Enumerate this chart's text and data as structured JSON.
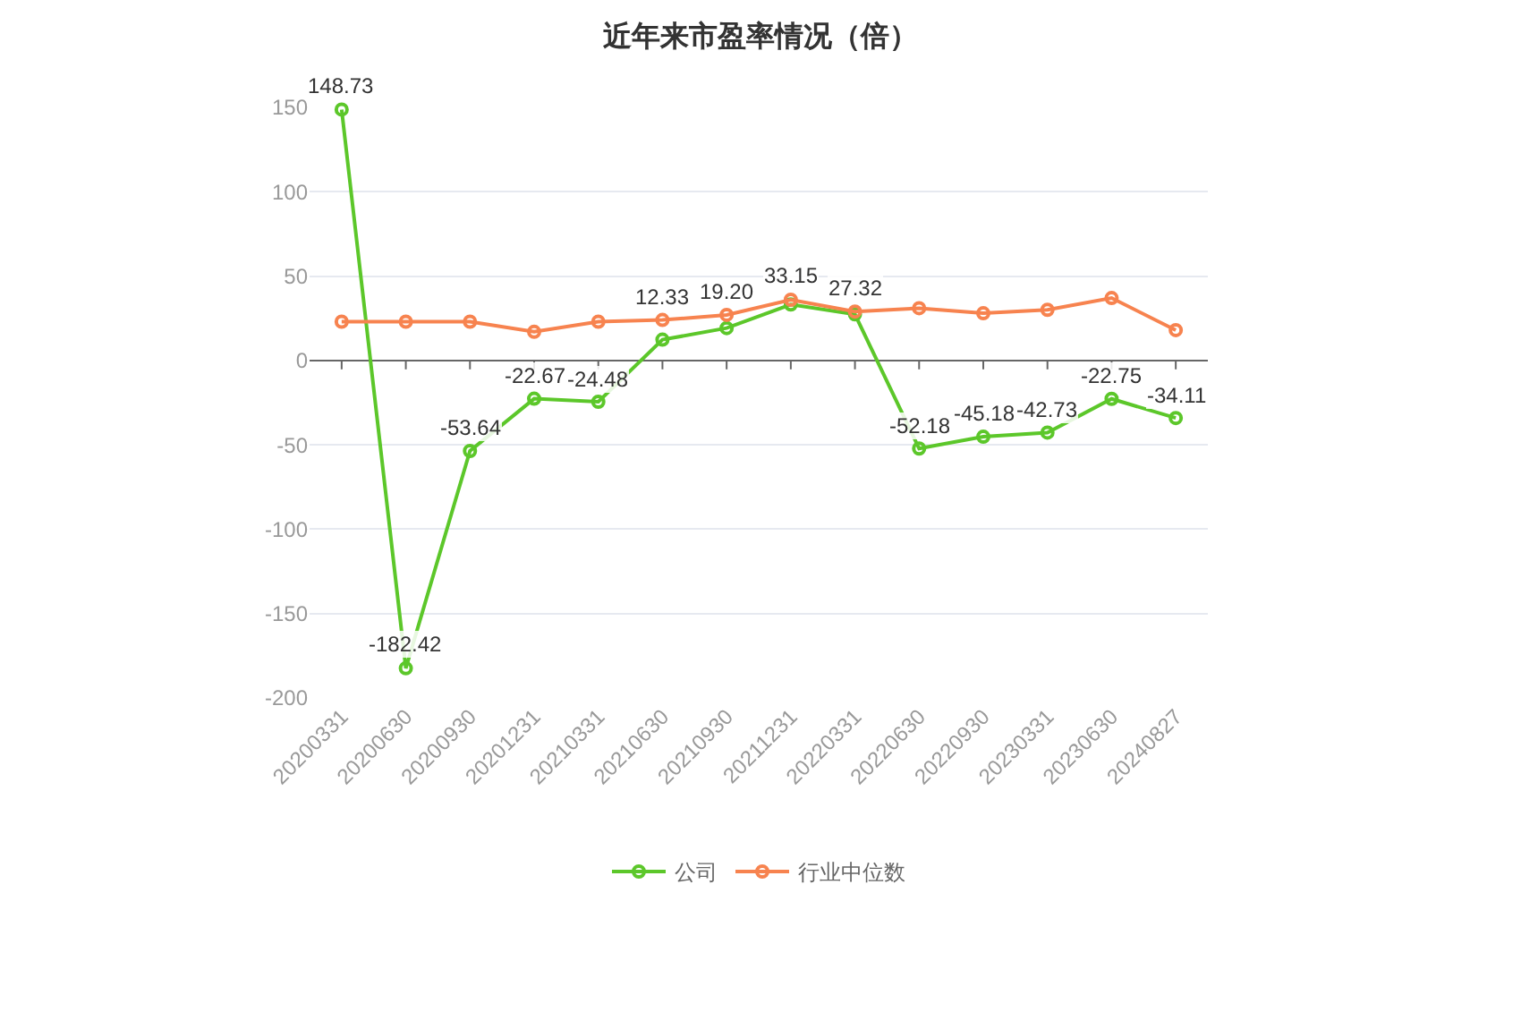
{
  "chart_data": {
    "type": "line",
    "title": "近年来市盈率情况（倍）",
    "categories": [
      "20200331",
      "20200630",
      "20200930",
      "20201231",
      "20210331",
      "20210630",
      "20210930",
      "20211231",
      "20220331",
      "20220630",
      "20220930",
      "20230331",
      "20230630",
      "20240827"
    ],
    "series": [
      {
        "name": "公司",
        "color": "#5cc72a",
        "values": [
          148.73,
          -182.42,
          -53.64,
          -22.67,
          -24.48,
          12.33,
          19.2,
          33.15,
          27.32,
          -52.18,
          -45.18,
          -42.73,
          -22.75,
          -34.11
        ],
        "value_labels": [
          "148.73",
          "-182.42",
          "-53.64",
          "-22.67",
          "-24.48",
          "12.33",
          "19.20",
          "33.15",
          "27.32",
          "-52.18",
          "-45.18",
          "-42.73",
          "-22.75",
          "-34.11"
        ]
      },
      {
        "name": "行业中位数",
        "color": "#f7834f",
        "values": [
          23,
          23,
          23,
          17,
          23,
          24,
          27,
          36,
          29,
          31,
          28,
          30,
          37,
          18
        ]
      }
    ],
    "ylim": [
      -200,
      150
    ],
    "yticks": [
      -200,
      -150,
      -100,
      -50,
      0,
      50,
      100,
      150
    ],
    "grid": "y",
    "legend": "bottom",
    "marker": "circle",
    "line_style": "solid"
  }
}
